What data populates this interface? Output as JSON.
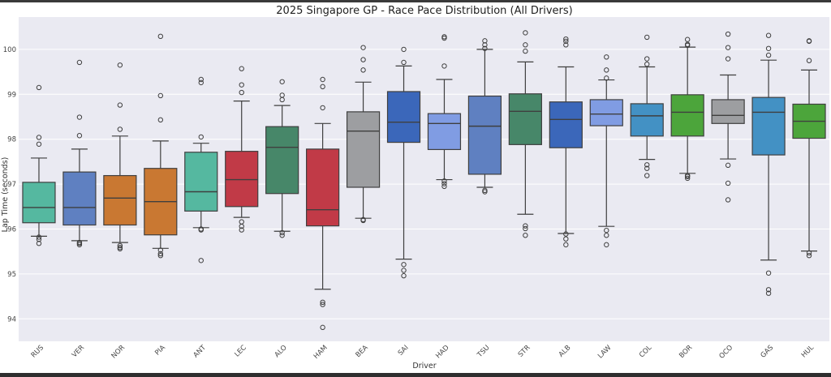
{
  "chart_data": {
    "type": "box",
    "title": "2025 Singapore GP - Race Pace Distribution (All Drivers)",
    "xlabel": "Driver",
    "ylabel": "Lap Time (seconds)",
    "ylim": [
      93.5,
      100.72
    ],
    "yticks": [
      94,
      95,
      96,
      97,
      98,
      99,
      100
    ],
    "grid": true,
    "background": "#eaeaf2",
    "series": [
      {
        "driver": "RUS",
        "color": "#55b8a0",
        "whisker_low": 95.84,
        "q1": 96.14,
        "median": 96.48,
        "q3": 97.04,
        "whisker_high": 97.58,
        "outliers": [
          99.15,
          98.04,
          97.89,
          95.82,
          95.77,
          95.68
        ]
      },
      {
        "driver": "VER",
        "color": "#5f80c1",
        "whisker_low": 95.74,
        "q1": 96.09,
        "median": 96.48,
        "q3": 97.27,
        "whisker_high": 97.78,
        "outliers": [
          99.71,
          98.49,
          98.08,
          95.7,
          95.68,
          95.65
        ]
      },
      {
        "driver": "NOR",
        "color": "#c97832",
        "whisker_low": 95.7,
        "q1": 96.09,
        "median": 96.69,
        "q3": 97.19,
        "whisker_high": 98.07,
        "outliers": [
          99.65,
          98.76,
          98.22,
          95.63,
          95.59,
          95.56
        ]
      },
      {
        "driver": "PIA",
        "color": "#c97832",
        "whisker_low": 95.57,
        "q1": 95.87,
        "median": 96.61,
        "q3": 97.35,
        "whisker_high": 97.96,
        "outliers": [
          100.29,
          98.97,
          98.43,
          95.53,
          95.45,
          95.41
        ]
      },
      {
        "driver": "ANT",
        "color": "#55b8a0",
        "whisker_low": 96.03,
        "q1": 96.4,
        "median": 96.83,
        "q3": 97.71,
        "whisker_high": 97.91,
        "outliers": [
          99.33,
          99.26,
          98.05,
          96.0,
          95.98,
          95.3
        ]
      },
      {
        "driver": "LEC",
        "color": "#c13a47",
        "whisker_low": 96.26,
        "q1": 96.5,
        "median": 97.1,
        "q3": 97.73,
        "whisker_high": 98.85,
        "outliers": [
          99.57,
          99.21,
          99.04,
          96.16,
          96.06,
          95.98
        ]
      },
      {
        "driver": "ALO",
        "color": "#478769",
        "whisker_low": 95.95,
        "q1": 96.79,
        "median": 97.82,
        "q3": 98.28,
        "whisker_high": 98.75,
        "outliers": [
          99.28,
          98.98,
          98.88,
          95.92,
          95.86
        ]
      },
      {
        "driver": "HAM",
        "color": "#c13a47",
        "whisker_low": 94.66,
        "q1": 96.07,
        "median": 96.43,
        "q3": 97.78,
        "whisker_high": 98.35,
        "outliers": [
          99.33,
          99.17,
          98.7,
          94.37,
          94.32,
          93.81
        ]
      },
      {
        "driver": "BEA",
        "color": "#9d9ea1",
        "whisker_low": 96.24,
        "q1": 96.93,
        "median": 98.18,
        "q3": 98.61,
        "whisker_high": 99.27,
        "outliers": [
          100.04,
          99.77,
          99.54,
          96.21,
          96.19
        ]
      },
      {
        "driver": "SAI",
        "color": "#3b67ba",
        "whisker_low": 95.33,
        "q1": 97.93,
        "median": 98.38,
        "q3": 99.06,
        "whisker_high": 99.63,
        "outliers": [
          100.0,
          99.71,
          95.21,
          95.08,
          94.96
        ]
      },
      {
        "driver": "HAD",
        "color": "#809ce3",
        "whisker_low": 97.1,
        "q1": 97.77,
        "median": 98.35,
        "q3": 98.57,
        "whisker_high": 99.33,
        "outliers": [
          100.28,
          100.25,
          99.63,
          97.07,
          97.01,
          96.95
        ]
      },
      {
        "driver": "TSU",
        "color": "#5f80c1",
        "whisker_low": 96.93,
        "q1": 97.22,
        "median": 98.29,
        "q3": 98.96,
        "whisker_high": 100.0,
        "outliers": [
          100.19,
          100.1,
          100.02,
          96.86,
          96.83
        ]
      },
      {
        "driver": "STR",
        "color": "#478769",
        "whisker_low": 96.33,
        "q1": 97.88,
        "median": 98.62,
        "q3": 99.01,
        "whisker_high": 99.72,
        "outliers": [
          100.37,
          100.1,
          99.96,
          96.07,
          96.01,
          95.86
        ]
      },
      {
        "driver": "ALB",
        "color": "#3b67ba",
        "whisker_low": 95.9,
        "q1": 97.81,
        "median": 98.44,
        "q3": 98.83,
        "whisker_high": 99.61,
        "outliers": [
          100.23,
          100.18,
          100.1,
          95.89,
          95.78,
          95.65
        ]
      },
      {
        "driver": "LAW",
        "color": "#809ce3",
        "whisker_low": 96.06,
        "q1": 98.3,
        "median": 98.56,
        "q3": 98.88,
        "whisker_high": 99.32,
        "outliers": [
          99.83,
          99.54,
          99.36,
          95.97,
          95.86,
          95.65
        ]
      },
      {
        "driver": "COL",
        "color": "#4391c4",
        "whisker_low": 97.55,
        "q1": 98.07,
        "median": 98.52,
        "q3": 98.79,
        "whisker_high": 99.61,
        "outliers": [
          100.27,
          99.79,
          99.67,
          97.43,
          97.35,
          97.19
        ]
      },
      {
        "driver": "BOR",
        "color": "#4ca53b",
        "whisker_low": 97.24,
        "q1": 98.07,
        "median": 98.6,
        "q3": 98.99,
        "whisker_high": 100.05,
        "outliers": [
          100.22,
          100.11,
          100.09,
          97.19,
          97.17,
          97.13
        ]
      },
      {
        "driver": "OCO",
        "color": "#9d9ea1",
        "whisker_low": 97.56,
        "q1": 98.35,
        "median": 98.53,
        "q3": 98.88,
        "whisker_high": 99.43,
        "outliers": [
          100.34,
          100.04,
          99.79,
          97.42,
          97.02,
          96.65
        ]
      },
      {
        "driver": "GAS",
        "color": "#4391c4",
        "whisker_low": 95.31,
        "q1": 97.65,
        "median": 98.6,
        "q3": 98.93,
        "whisker_high": 99.76,
        "outliers": [
          100.31,
          100.02,
          99.87,
          95.02,
          94.65,
          94.57
        ]
      },
      {
        "driver": "HUL",
        "color": "#4ca53b",
        "whisker_low": 95.51,
        "q1": 98.02,
        "median": 98.4,
        "q3": 98.78,
        "whisker_high": 99.54,
        "outliers": [
          100.19,
          100.18,
          99.75,
          95.47,
          95.41
        ]
      }
    ]
  }
}
